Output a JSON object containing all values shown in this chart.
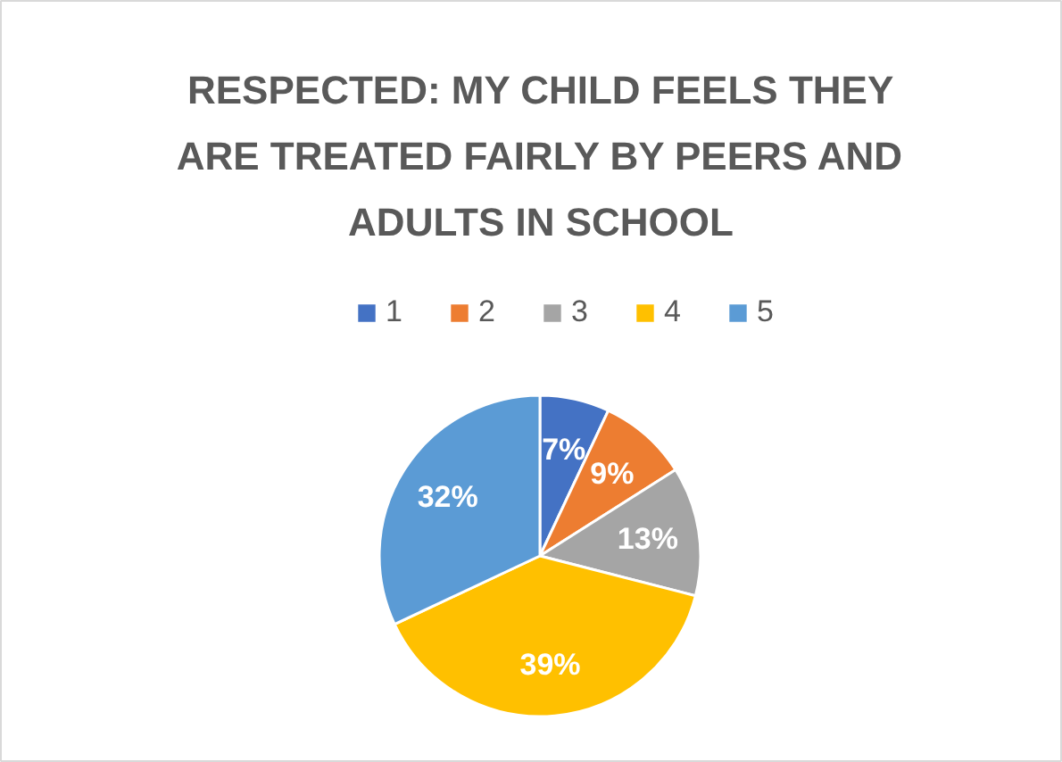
{
  "chart_data": {
    "type": "pie",
    "title": "RESPECTED: MY CHILD FEELS THEY ARE TREATED FAIRLY BY PEERS AND ADULTS IN SCHOOL",
    "categories": [
      "1",
      "2",
      "3",
      "4",
      "5"
    ],
    "values": [
      7,
      9,
      13,
      39,
      32
    ],
    "colors": [
      "#4472c4",
      "#ed7d31",
      "#a5a5a5",
      "#ffc000",
      "#5b9bd5"
    ],
    "value_labels": [
      "7%",
      "9%",
      "13%",
      "39%",
      "32%"
    ],
    "legend": "top"
  }
}
